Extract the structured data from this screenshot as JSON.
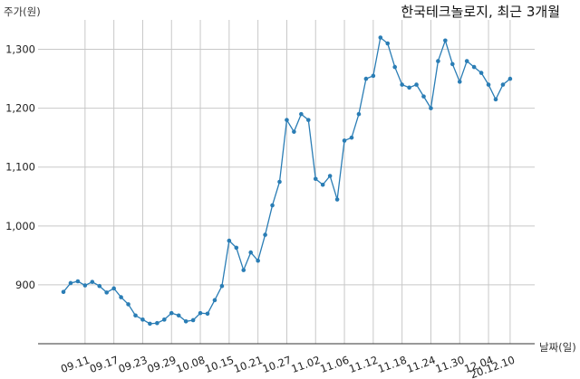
{
  "chart_data": {
    "type": "line",
    "title": "한국테크놀로지, 최근 3개월",
    "xlabel": "날짜(일)",
    "ylabel": "주가(원)",
    "ylim": [
      800,
      1350
    ],
    "yticks": [
      900,
      1000,
      1100,
      1200,
      1300
    ],
    "ytick_labels": [
      "900",
      "1,000",
      "1,100",
      "1,200",
      "1,300"
    ],
    "xticks": [
      {
        "index": 3,
        "label": "09.11"
      },
      {
        "index": 7,
        "label": "09.17"
      },
      {
        "index": 11,
        "label": "09.23"
      },
      {
        "index": 15,
        "label": "09.29"
      },
      {
        "index": 19,
        "label": "10.08"
      },
      {
        "index": 23,
        "label": "10.15"
      },
      {
        "index": 27,
        "label": "10.21"
      },
      {
        "index": 31,
        "label": "10.27"
      },
      {
        "index": 35,
        "label": "11.02"
      },
      {
        "index": 39,
        "label": "11.06"
      },
      {
        "index": 43,
        "label": "11.12"
      },
      {
        "index": 47,
        "label": "11.18"
      },
      {
        "index": 51,
        "label": "11.24"
      },
      {
        "index": 55,
        "label": "11.30"
      },
      {
        "index": 59,
        "label": "12.04"
      },
      {
        "index": 62,
        "label": "20.12.10"
      }
    ],
    "grid": true,
    "color": "#2a7db5",
    "values": [
      888,
      903,
      906,
      899,
      905,
      898,
      887,
      894,
      879,
      867,
      848,
      841,
      834,
      835,
      841,
      852,
      848,
      838,
      840,
      852,
      851,
      874,
      898,
      975,
      963,
      925,
      955,
      941,
      985,
      1035,
      1075,
      1180,
      1160,
      1190,
      1180,
      1080,
      1070,
      1085,
      1045,
      1145,
      1150,
      1190,
      1250,
      1255,
      1320,
      1310,
      1270,
      1240,
      1235,
      1240,
      1220,
      1200,
      1280,
      1315,
      1275,
      1245,
      1280,
      1270,
      1260,
      1240,
      1215,
      1240,
      1250
    ]
  }
}
